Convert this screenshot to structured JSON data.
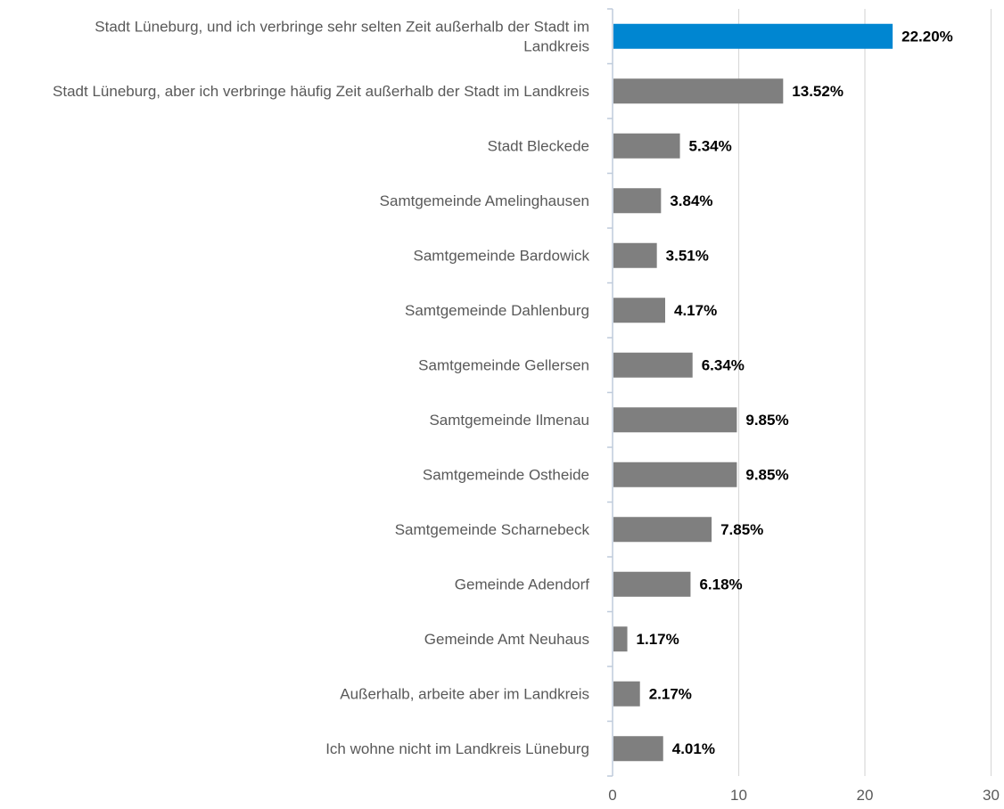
{
  "chart_data": {
    "type": "bar",
    "orientation": "horizontal",
    "title": "",
    "xlabel": "",
    "ylabel": "",
    "xlim": [
      0,
      30
    ],
    "x_ticks": [
      0,
      10,
      20,
      30
    ],
    "x_tick_labels": [
      "0",
      "10",
      "20",
      "30"
    ],
    "grid": "vertical gridlines",
    "legend": "none",
    "value_suffix": "%",
    "categories": [
      [
        "Stadt Lüneburg, und ich verbringe sehr selten Zeit außerhalb der Stadt im",
        "Landkreis"
      ],
      [
        "Stadt Lüneburg, aber ich verbringe häufig Zeit außerhalb der Stadt im Landkreis"
      ],
      [
        "Stadt Bleckede"
      ],
      [
        "Samtgemeinde Amelinghausen"
      ],
      [
        "Samtgemeinde Bardowick"
      ],
      [
        "Samtgemeinde Dahlenburg"
      ],
      [
        "Samtgemeinde Gellersen"
      ],
      [
        "Samtgemeinde Ilmenau"
      ],
      [
        "Samtgemeinde Ostheide"
      ],
      [
        "Samtgemeinde Scharnebeck"
      ],
      [
        "Gemeinde Adendorf"
      ],
      [
        "Gemeinde Amt Neuhaus"
      ],
      [
        "Außerhalb, arbeite aber im Landkreis"
      ],
      [
        "Ich wohne nicht im Landkreis Lüneburg"
      ]
    ],
    "values": [
      22.2,
      13.52,
      5.34,
      3.84,
      3.51,
      4.17,
      6.34,
      9.85,
      9.85,
      7.85,
      6.18,
      1.17,
      2.17,
      4.01
    ],
    "data_labels": [
      "22.20%",
      "13.52%",
      "5.34%",
      "3.84%",
      "3.51%",
      "4.17%",
      "6.34%",
      "9.85%",
      "9.85%",
      "7.85%",
      "6.18%",
      "1.17%",
      "2.17%",
      "4.01%"
    ],
    "highlight_index": 0,
    "colors": {
      "highlight": "#0086D1",
      "bar": "#7F7F7F",
      "grid": "#D9D9D9",
      "axis": "#BFCBDB",
      "category_text": "#595959",
      "label_text": "#000000"
    }
  }
}
